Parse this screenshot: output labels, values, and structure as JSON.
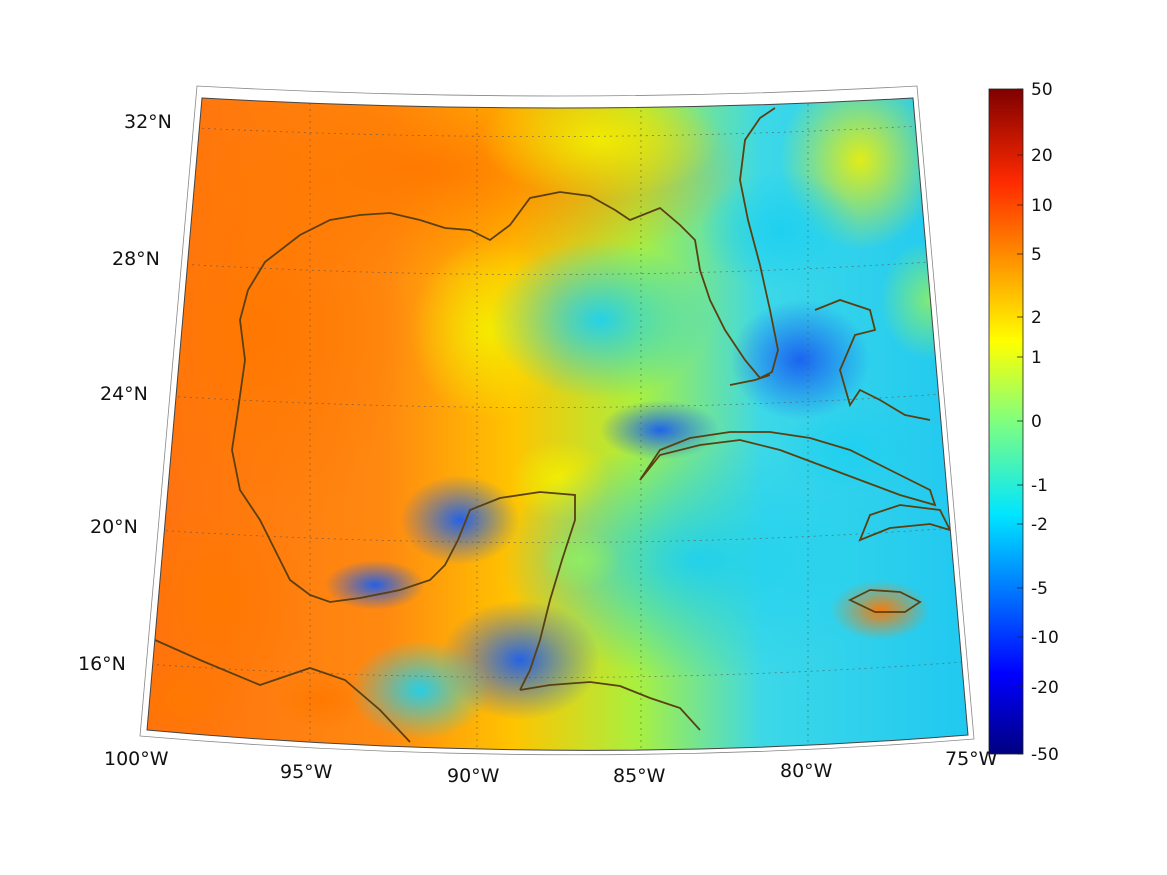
{
  "map": {
    "projection": "conic",
    "lon_range": [
      -100,
      -75
    ],
    "lat_range": [
      14,
      33
    ],
    "lon_ticks": [
      {
        "value": -100,
        "label": "100°W"
      },
      {
        "value": -95,
        "label": "95°W"
      },
      {
        "value": -90,
        "label": "90°W"
      },
      {
        "value": -85,
        "label": "85°W"
      },
      {
        "value": -80,
        "label": "80°W"
      },
      {
        "value": -75,
        "label": "75°W"
      }
    ],
    "lat_ticks": [
      {
        "value": 32,
        "label": "32°N"
      },
      {
        "value": 28,
        "label": "28°N"
      },
      {
        "value": 24,
        "label": "24°N"
      },
      {
        "value": 20,
        "label": "20°N"
      },
      {
        "value": 16,
        "label": "16°N"
      }
    ],
    "grid": "dotted",
    "coastline_color": "#5a4010",
    "colormap": "jet",
    "colorbar": {
      "placement": "right",
      "ticks": [
        "50",
        "20",
        "10",
        "5",
        "2",
        "1",
        "0",
        "-1",
        "-2",
        "-5",
        "-10",
        "-20",
        "-50"
      ]
    }
  }
}
